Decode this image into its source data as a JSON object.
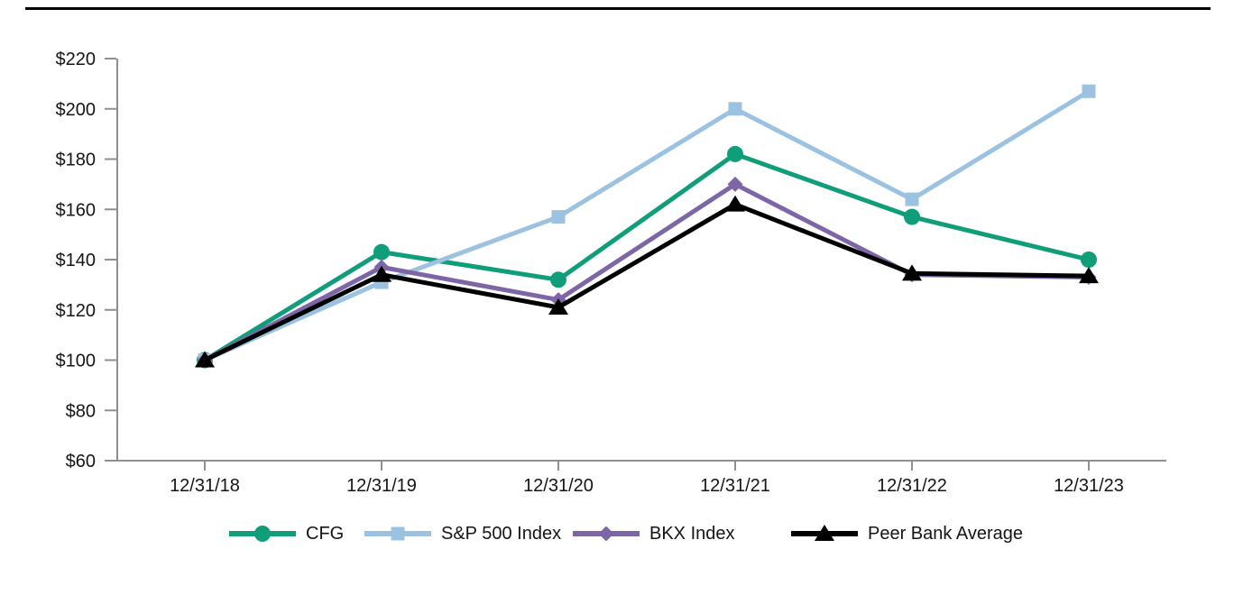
{
  "chart_data": {
    "type": "line",
    "title": "",
    "xlabel": "",
    "ylabel": "",
    "categories": [
      "12/31/18",
      "12/31/19",
      "12/31/20",
      "12/31/21",
      "12/31/22",
      "12/31/23"
    ],
    "series": [
      {
        "name": "CFG",
        "color": "#0f9e79",
        "marker": "circle",
        "values": [
          100,
          143,
          132,
          182,
          157,
          140
        ]
      },
      {
        "name": "S&P 500 Index",
        "color": "#9cc2e2",
        "marker": "square",
        "values": [
          100,
          131,
          157,
          200,
          164,
          207
        ]
      },
      {
        "name": "BKX Index",
        "color": "#7e66a6",
        "marker": "diamond",
        "values": [
          100,
          137,
          124,
          170,
          134,
          133
        ]
      },
      {
        "name": "Peer Bank Average",
        "color": "#000000",
        "marker": "triangle",
        "values": [
          100,
          134,
          121,
          162,
          134.5,
          133.5
        ]
      }
    ],
    "y_axis": {
      "min": 60,
      "max": 220,
      "step": 20,
      "prefix": "$",
      "tick_labels": [
        "$60",
        "$80",
        "$100",
        "$120",
        "$140",
        "$160",
        "$180",
        "$200",
        "$220"
      ]
    },
    "grid": false,
    "legend_position": "bottom",
    "axis_color": "#8f8f8f",
    "label_color": "#141414"
  },
  "legend": {
    "items": [
      {
        "label": "CFG"
      },
      {
        "label": "S&P 500 Index"
      },
      {
        "label": "BKX Index"
      },
      {
        "label": "Peer Bank Average"
      }
    ]
  }
}
